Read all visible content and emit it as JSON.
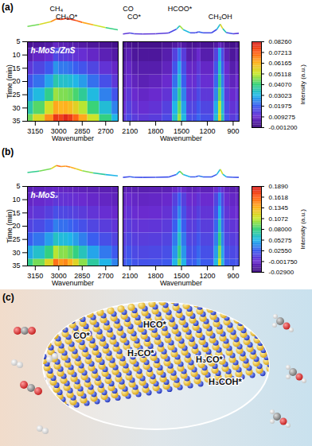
{
  "chart_data": [
    {
      "type": "heatmap",
      "panel": "(a)",
      "title": "h-MoS₂/ZnS",
      "y_label": "Time (min)",
      "ylim": [
        5,
        35
      ],
      "yticks": [
        5,
        10,
        15,
        20,
        25,
        30,
        35
      ],
      "times": [
        5,
        10,
        15,
        20,
        25,
        30,
        35
      ],
      "colorbar": {
        "label": "Intensity (a.u.)",
        "lim": [
          -0.0012,
          0.0826
        ],
        "ticks": [
          {
            "value": 0.0826,
            "label": "0.08260"
          },
          0.07213,
          0.06165,
          0.05118,
          {
            "value": 0.0407,
            "label": "0.04070"
          },
          0.03023,
          0.01975,
          0.009275,
          {
            "value": -0.0012,
            "label": "-0.001200"
          }
        ]
      },
      "annotations": [
        {
          "text": "CH₄",
          "x": 3015
        },
        {
          "text": "CH₃O*",
          "x": 2950
        },
        {
          "text": "CO",
          "x": 2120
        },
        {
          "text": "CO*",
          "x": 2050
        },
        {
          "text": "HCOO*",
          "x": 1520
        },
        {
          "text": "CH₃OH",
          "x": 1050
        }
      ],
      "windows": [
        {
          "x_label": "Wavenumber",
          "xlim": [
            3200,
            2620
          ],
          "xticks": [
            3150,
            3000,
            2850,
            2700
          ],
          "x": [
            3200,
            3125,
            3050,
            3015,
            2985,
            2955,
            2925,
            2890,
            2850,
            2780,
            2700,
            2620
          ],
          "cells": [
            [
              0.002,
              0.003,
              0.004,
              0.008,
              0.006,
              0.006,
              0.005,
              0.005,
              0.004,
              0.003,
              0.002,
              0.001
            ],
            [
              0.006,
              0.008,
              0.01,
              0.016,
              0.013,
              0.013,
              0.012,
              0.011,
              0.01,
              0.008,
              0.006,
              0.004
            ],
            [
              0.012,
              0.015,
              0.019,
              0.026,
              0.023,
              0.023,
              0.022,
              0.02,
              0.018,
              0.015,
              0.011,
              0.008
            ],
            [
              0.018,
              0.022,
              0.028,
              0.036,
              0.033,
              0.033,
              0.032,
              0.03,
              0.027,
              0.022,
              0.017,
              0.012
            ],
            [
              0.026,
              0.031,
              0.039,
              0.048,
              0.046,
              0.046,
              0.045,
              0.042,
              0.038,
              0.031,
              0.024,
              0.018
            ],
            [
              0.036,
              0.043,
              0.053,
              0.063,
              0.061,
              0.062,
              0.06,
              0.056,
              0.05,
              0.041,
              0.032,
              0.024
            ],
            [
              0.045,
              0.054,
              0.066,
              0.078,
              0.076,
              0.08,
              0.077,
              0.071,
              0.063,
              0.052,
              0.04,
              0.03
            ]
          ]
        },
        {
          "x_label": "Wavenumber",
          "xlim": [
            2180,
            830
          ],
          "xticks": [
            2100,
            1800,
            1500,
            1200,
            900
          ],
          "x": [
            2180,
            2100,
            2050,
            1950,
            1800,
            1650,
            1560,
            1520,
            1480,
            1400,
            1340,
            1300,
            1250,
            1150,
            1090,
            1050,
            1020,
            980,
            900,
            830
          ],
          "cells": [
            [
              0.001,
              0.002,
              0.001,
              0.001,
              0.001,
              0.002,
              0.004,
              0.006,
              0.004,
              0.002,
              0.002,
              0.003,
              0.002,
              0.002,
              0.004,
              0.008,
              0.005,
              0.002,
              0.001,
              0.002
            ],
            [
              0.003,
              0.006,
              0.003,
              0.003,
              0.003,
              0.005,
              0.014,
              0.022,
              0.013,
              0.005,
              0.006,
              0.009,
              0.005,
              0.005,
              0.014,
              0.028,
              0.016,
              0.006,
              0.003,
              0.005
            ],
            [
              0.005,
              0.008,
              0.005,
              0.005,
              0.005,
              0.007,
              0.018,
              0.028,
              0.017,
              0.008,
              0.008,
              0.012,
              0.008,
              0.008,
              0.018,
              0.034,
              0.02,
              0.009,
              0.005,
              0.007
            ],
            [
              0.006,
              0.01,
              0.007,
              0.006,
              0.007,
              0.009,
              0.022,
              0.033,
              0.02,
              0.01,
              0.01,
              0.014,
              0.01,
              0.01,
              0.021,
              0.039,
              0.024,
              0.011,
              0.007,
              0.009
            ],
            [
              0.008,
              0.012,
              0.009,
              0.008,
              0.009,
              0.011,
              0.026,
              0.038,
              0.024,
              0.012,
              0.012,
              0.016,
              0.012,
              0.012,
              0.025,
              0.044,
              0.028,
              0.013,
              0.009,
              0.011
            ],
            [
              0.01,
              0.014,
              0.011,
              0.01,
              0.011,
              0.014,
              0.03,
              0.044,
              0.028,
              0.015,
              0.015,
              0.019,
              0.015,
              0.015,
              0.029,
              0.05,
              0.032,
              0.016,
              0.011,
              0.013
            ],
            [
              0.012,
              0.016,
              0.013,
              0.012,
              0.013,
              0.016,
              0.033,
              0.048,
              0.031,
              0.017,
              0.017,
              0.021,
              0.017,
              0.017,
              0.032,
              0.055,
              0.035,
              0.018,
              0.013,
              0.015
            ]
          ]
        }
      ]
    },
    {
      "type": "heatmap",
      "panel": "(b)",
      "title": "h-MoS₂",
      "y_label": "Time (min)",
      "ylim": [
        5,
        35
      ],
      "yticks": [
        5,
        10,
        15,
        20,
        25,
        30,
        35
      ],
      "times": [
        5,
        10,
        15,
        20,
        25,
        30,
        35
      ],
      "colorbar": {
        "label": "Intensity (a.u.)",
        "lim": [
          -0.029,
          0.189
        ],
        "ticks": [
          {
            "value": 0.189,
            "label": "0.1890"
          },
          0.1618,
          0.1345,
          0.1072,
          {
            "value": 0.08,
            "label": "0.08000"
          },
          0.05275,
          {
            "value": 0.0255,
            "label": "0.02550"
          },
          {
            "value": -0.00175,
            "label": "-0.001750"
          },
          {
            "value": -0.029,
            "label": "-0.02900"
          }
        ]
      },
      "annotations": [],
      "windows": [
        {
          "x_label": "Wavenumber",
          "xlim": [
            3200,
            2620
          ],
          "xticks": [
            3150,
            3000,
            2850,
            2700
          ],
          "x": [
            3200,
            3125,
            3050,
            3015,
            2985,
            2955,
            2925,
            2890,
            2850,
            2780,
            2700,
            2620
          ],
          "cells": [
            [
              -0.01,
              -0.008,
              -0.006,
              -0.004,
              -0.006,
              -0.006,
              -0.007,
              -0.008,
              -0.009,
              -0.01,
              -0.011,
              -0.012
            ],
            [
              -0.005,
              -0.003,
              0.0,
              0.005,
              0.002,
              0.002,
              0.001,
              0.0,
              -0.002,
              -0.004,
              -0.006,
              -0.008
            ],
            [
              0.002,
              0.005,
              0.01,
              0.018,
              0.014,
              0.014,
              0.012,
              0.01,
              0.007,
              0.003,
              0.0,
              -0.003
            ],
            [
              0.012,
              0.016,
              0.024,
              0.036,
              0.031,
              0.031,
              0.028,
              0.024,
              0.019,
              0.013,
              0.008,
              0.004
            ],
            [
              0.026,
              0.033,
              0.045,
              0.062,
              0.056,
              0.056,
              0.052,
              0.045,
              0.036,
              0.026,
              0.018,
              0.012
            ],
            [
              0.048,
              0.06,
              0.078,
              0.104,
              0.095,
              0.096,
              0.089,
              0.078,
              0.064,
              0.047,
              0.034,
              0.024
            ],
            [
              0.075,
              0.092,
              0.118,
              0.155,
              0.143,
              0.148,
              0.136,
              0.118,
              0.096,
              0.071,
              0.052,
              0.037
            ]
          ]
        },
        {
          "x_label": "Wavenumber",
          "xlim": [
            2180,
            830
          ],
          "xticks": [
            2100,
            1800,
            1500,
            1200,
            900
          ],
          "x": [
            2180,
            2100,
            2050,
            1950,
            1800,
            1650,
            1560,
            1520,
            1480,
            1400,
            1340,
            1300,
            1250,
            1150,
            1090,
            1050,
            1020,
            980,
            900,
            830
          ],
          "cells": [
            [
              -0.012,
              -0.01,
              -0.011,
              -0.012,
              -0.011,
              -0.01,
              -0.004,
              0.004,
              -0.004,
              -0.009,
              -0.009,
              -0.006,
              -0.009,
              -0.009,
              -0.002,
              0.01,
              0.0,
              -0.008,
              -0.011,
              -0.012
            ],
            [
              -0.006,
              -0.002,
              -0.005,
              -0.006,
              -0.005,
              -0.003,
              0.01,
              0.026,
              0.01,
              -0.002,
              -0.002,
              0.004,
              -0.002,
              -0.002,
              0.012,
              0.036,
              0.014,
              -0.001,
              -0.005,
              -0.006
            ],
            [
              -0.002,
              0.003,
              -0.001,
              -0.002,
              -0.001,
              0.002,
              0.018,
              0.038,
              0.018,
              0.003,
              0.003,
              0.01,
              0.003,
              0.003,
              0.02,
              0.05,
              0.022,
              0.004,
              -0.001,
              -0.002
            ],
            [
              0.003,
              0.008,
              0.004,
              0.003,
              0.004,
              0.007,
              0.026,
              0.05,
              0.026,
              0.008,
              0.009,
              0.016,
              0.008,
              0.008,
              0.028,
              0.064,
              0.03,
              0.009,
              0.004,
              0.003
            ],
            [
              0.008,
              0.014,
              0.009,
              0.008,
              0.009,
              0.012,
              0.034,
              0.062,
              0.034,
              0.013,
              0.014,
              0.022,
              0.013,
              0.013,
              0.036,
              0.078,
              0.038,
              0.014,
              0.009,
              0.008
            ],
            [
              0.014,
              0.021,
              0.015,
              0.014,
              0.015,
              0.018,
              0.043,
              0.076,
              0.043,
              0.019,
              0.02,
              0.029,
              0.019,
              0.019,
              0.045,
              0.094,
              0.047,
              0.02,
              0.015,
              0.014
            ],
            [
              0.02,
              0.028,
              0.021,
              0.02,
              0.021,
              0.024,
              0.052,
              0.09,
              0.052,
              0.025,
              0.026,
              0.036,
              0.025,
              0.025,
              0.054,
              0.112,
              0.056,
              0.026,
              0.021,
              0.02
            ]
          ]
        }
      ]
    }
  ],
  "panel_c": {
    "panel": "(c)",
    "labels": [
      "CO*",
      "HCO*",
      "H₂CO*",
      "H₃CO*",
      "H₃COH*"
    ]
  }
}
